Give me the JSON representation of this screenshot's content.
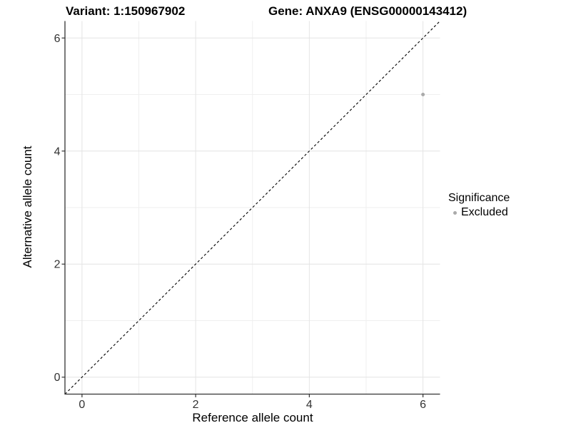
{
  "colors": {
    "background": "#ffffff",
    "grid_major": "#e4e4e4",
    "grid_minor": "#efefef",
    "axis_line": "#333333",
    "tick_label": "#333333",
    "identity_line": "#000000",
    "point": "#aaaaaa",
    "text": "#000000"
  },
  "chart_data": {
    "type": "scatter",
    "title_left": "Variant: 1:150967902",
    "title_right": "Gene: ANXA9 (ENSG00000143412)",
    "xlabel": "Reference allele count",
    "ylabel": "Alternative allele count",
    "xlim": [
      -0.3,
      6.3
    ],
    "ylim": [
      -0.3,
      6.3
    ],
    "x_major_ticks": [
      0,
      2,
      4,
      6
    ],
    "y_major_ticks": [
      0,
      2,
      4,
      6
    ],
    "x_minor_ticks": [
      1,
      3,
      5
    ],
    "y_minor_ticks": [
      1,
      3,
      5
    ],
    "grid": "on",
    "identity_line": {
      "type": "y=x",
      "style": "dashed",
      "color": "#000000"
    },
    "series": [
      {
        "name": "Excluded",
        "color": "#aaaaaa",
        "points": [
          [
            6,
            5
          ]
        ]
      }
    ],
    "legend": {
      "title": "Significance",
      "position": "right",
      "items": [
        {
          "label": "Excluded",
          "color": "#aaaaaa"
        }
      ]
    }
  }
}
